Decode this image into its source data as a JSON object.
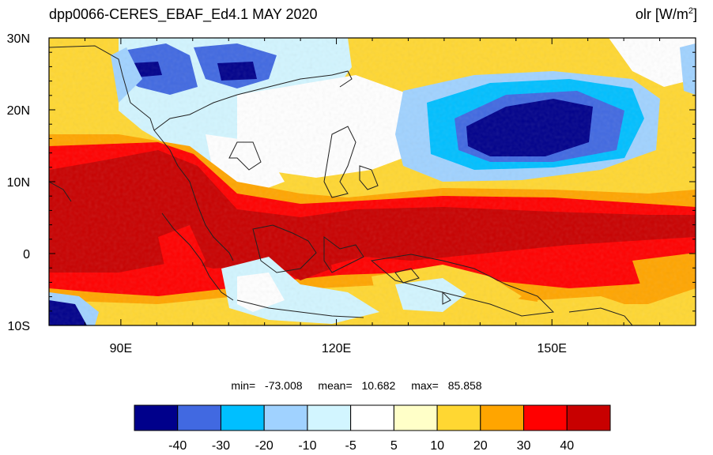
{
  "title_left": "dpp0066-CERES_EBAF_Ed4.1  MAY 2020",
  "title_right": {
    "variable": "olr",
    "unit_prefix": "[W/m",
    "unit_exp": "2",
    "unit_suffix": "]"
  },
  "map": {
    "lon_range": [
      80,
      170
    ],
    "lat_range": [
      -10,
      30
    ],
    "lon_labels": [
      "90E",
      "120E",
      "150E"
    ],
    "lon_label_values": [
      90,
      120,
      150
    ],
    "lat_labels": [
      "30N",
      "20N",
      "10N",
      "0",
      "10S"
    ],
    "lat_label_values": [
      30,
      20,
      10,
      0,
      -10
    ]
  },
  "stats": {
    "min_label": "min=",
    "min": "-73.008",
    "mean_label": "mean=",
    "mean": "10.682",
    "max_label": "max=",
    "max": "85.858"
  },
  "colorbar": {
    "colors": [
      "#00008b",
      "#4169e1",
      "#00bfff",
      "#a0d2ff",
      "#d2f5ff",
      "#ffffff",
      "#ffffc8",
      "#ffd732",
      "#ffa500",
      "#ff0000",
      "#c80000"
    ],
    "labels": [
      "-40",
      "-30",
      "-20",
      "-10",
      "-5",
      "5",
      "10",
      "20",
      "30",
      "40"
    ]
  }
}
